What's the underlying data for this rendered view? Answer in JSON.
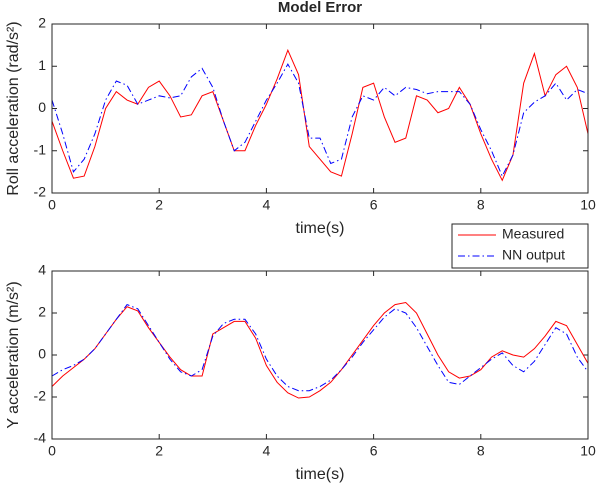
{
  "chart_data": [
    {
      "type": "line",
      "title": "Model Error",
      "xlabel": "time(s)",
      "ylabel": "Roll acceleration (rad/s²)",
      "x": [
        0,
        0.2,
        0.4,
        0.6,
        0.8,
        1,
        1.2,
        1.4,
        1.6,
        1.8,
        2,
        2.2,
        2.4,
        2.6,
        2.8,
        3,
        3.2,
        3.4,
        3.6,
        3.8,
        4,
        4.2,
        4.4,
        4.6,
        4.8,
        5,
        5.2,
        5.4,
        5.6,
        5.8,
        6,
        6.2,
        6.4,
        6.6,
        6.8,
        7,
        7.2,
        7.4,
        7.6,
        7.8,
        8,
        8.2,
        8.4,
        8.6,
        8.8,
        9,
        9.2,
        9.4,
        9.6,
        9.8,
        10
      ],
      "series": [
        {
          "name": "Measured",
          "color": "#ff0000",
          "linestyle": "-",
          "values": [
            -0.3,
            -1.0,
            -1.65,
            -1.6,
            -0.9,
            0.0,
            0.4,
            0.2,
            0.1,
            0.5,
            0.65,
            0.3,
            -0.2,
            -0.15,
            0.3,
            0.4,
            -0.3,
            -1.0,
            -1.0,
            -0.4,
            0.1,
            0.7,
            1.38,
            0.8,
            -0.9,
            -1.2,
            -1.5,
            -1.6,
            -0.6,
            0.5,
            0.6,
            -0.2,
            -0.8,
            -0.7,
            0.3,
            0.2,
            -0.1,
            0.0,
            0.5,
            0.1,
            -0.6,
            -1.2,
            -1.7,
            -1.1,
            0.6,
            1.3,
            0.3,
            0.8,
            1.0,
            0.5,
            -0.6
          ]
        },
        {
          "name": "NN output",
          "color": "#0000ff",
          "linestyle": "-.",
          "values": [
            0.2,
            -0.6,
            -1.5,
            -1.2,
            -0.6,
            0.2,
            0.65,
            0.55,
            0.1,
            0.2,
            0.3,
            0.25,
            0.3,
            0.75,
            0.95,
            0.5,
            -0.3,
            -1.0,
            -0.8,
            -0.3,
            0.2,
            0.6,
            1.05,
            0.6,
            -0.7,
            -0.7,
            -1.3,
            -1.2,
            -0.2,
            0.3,
            0.2,
            0.5,
            0.3,
            0.5,
            0.45,
            0.35,
            0.4,
            0.4,
            0.4,
            0.1,
            -0.5,
            -1.0,
            -1.6,
            -1.1,
            -0.1,
            0.15,
            0.3,
            0.6,
            0.2,
            0.45,
            0.35
          ]
        }
      ],
      "xlim": [
        0,
        10
      ],
      "xticks": [
        0,
        2,
        4,
        6,
        8,
        10
      ],
      "ylim": [
        -2,
        2
      ],
      "yticks": [
        -2,
        -1,
        0,
        1,
        2
      ],
      "grid": false,
      "legend": "southeast outside"
    },
    {
      "type": "line",
      "xlabel": "time(s)",
      "ylabel": "Y acceleration (m/s²)",
      "x": [
        0,
        0.2,
        0.4,
        0.6,
        0.8,
        1,
        1.2,
        1.4,
        1.6,
        1.8,
        2,
        2.2,
        2.4,
        2.6,
        2.8,
        3,
        3.2,
        3.4,
        3.6,
        3.8,
        4,
        4.2,
        4.4,
        4.6,
        4.8,
        5,
        5.2,
        5.4,
        5.6,
        5.8,
        6,
        6.2,
        6.4,
        6.6,
        6.8,
        7,
        7.2,
        7.4,
        7.6,
        7.8,
        8,
        8.2,
        8.4,
        8.6,
        8.8,
        9,
        9.2,
        9.4,
        9.6,
        9.8,
        10
      ],
      "series": [
        {
          "name": "Measured",
          "color": "#ff0000",
          "linestyle": "-",
          "values": [
            -1.5,
            -1.0,
            -0.6,
            -0.2,
            0.3,
            1.0,
            1.7,
            2.3,
            2.1,
            1.3,
            0.6,
            -0.1,
            -0.7,
            -1.0,
            -1.0,
            1.0,
            1.3,
            1.6,
            1.6,
            0.8,
            -0.5,
            -1.3,
            -1.8,
            -2.05,
            -2.0,
            -1.7,
            -1.3,
            -0.7,
            0.0,
            0.7,
            1.4,
            2.0,
            2.4,
            2.5,
            2.0,
            1.0,
            0.0,
            -0.8,
            -1.1,
            -1.0,
            -0.7,
            -0.1,
            0.2,
            0.0,
            -0.1,
            0.3,
            0.9,
            1.6,
            1.4,
            0.5,
            -0.4
          ]
        },
        {
          "name": "NN output",
          "color": "#0000ff",
          "linestyle": "-.",
          "values": [
            -1.0,
            -0.7,
            -0.5,
            -0.2,
            0.3,
            1.0,
            1.7,
            2.4,
            2.2,
            1.4,
            0.6,
            -0.2,
            -0.8,
            -1.0,
            -0.7,
            0.9,
            1.5,
            1.7,
            1.7,
            1.0,
            -0.2,
            -1.0,
            -1.5,
            -1.7,
            -1.7,
            -1.5,
            -1.2,
            -0.7,
            -0.1,
            0.6,
            1.2,
            1.8,
            2.2,
            2.0,
            1.3,
            0.4,
            -0.5,
            -1.3,
            -1.4,
            -1.0,
            -0.6,
            -0.2,
            0.1,
            -0.5,
            -0.8,
            -0.3,
            0.5,
            1.3,
            1.0,
            -0.1,
            -0.8
          ]
        }
      ],
      "xlim": [
        0,
        10
      ],
      "xticks": [
        0,
        2,
        4,
        6,
        8,
        10
      ],
      "ylim": [
        -4,
        4
      ],
      "yticks": [
        -4,
        -2,
        0,
        2,
        4
      ],
      "grid": false
    }
  ]
}
